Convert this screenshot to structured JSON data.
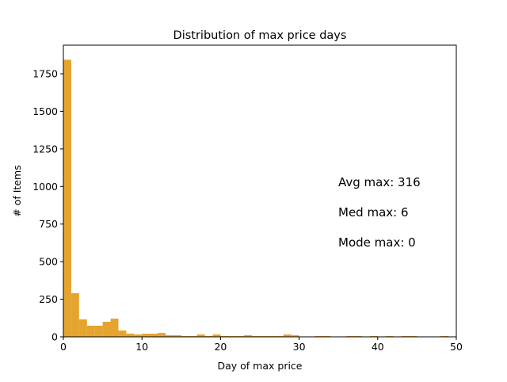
{
  "chart_data": {
    "type": "bar",
    "title": "Distribution of max price days",
    "xlabel": "Day of max price",
    "ylabel": "# of Items",
    "xlim": [
      0,
      50
    ],
    "ylim": [
      0,
      1940
    ],
    "xticks": [
      0,
      10,
      20,
      30,
      40,
      50
    ],
    "yticks": [
      0,
      250,
      500,
      750,
      1000,
      1250,
      1500,
      1750
    ],
    "bin_width": 1,
    "bin_starts": [
      0,
      1,
      2,
      3,
      4,
      5,
      6,
      7,
      8,
      9,
      10,
      11,
      12,
      13,
      14,
      15,
      16,
      17,
      18,
      19,
      20,
      21,
      22,
      23,
      24,
      25,
      26,
      27,
      28,
      29,
      30,
      31,
      32,
      33,
      34,
      35,
      36,
      37,
      38,
      39,
      40,
      41,
      42,
      43,
      44,
      45,
      46,
      47,
      48,
      49
    ],
    "values": [
      1843,
      290,
      116,
      74,
      74,
      100,
      121,
      42,
      21,
      16,
      21,
      21,
      26,
      11,
      11,
      5,
      5,
      16,
      5,
      16,
      5,
      5,
      5,
      11,
      5,
      5,
      5,
      5,
      16,
      11,
      0,
      0,
      5,
      5,
      0,
      0,
      5,
      5,
      0,
      5,
      0,
      5,
      0,
      5,
      5,
      0,
      0,
      0,
      5,
      0
    ],
    "grid": false,
    "color": "#e5a42e",
    "annotations": [
      "Avg max: 316",
      "Med max: 6",
      "Mode max: 0"
    ]
  }
}
